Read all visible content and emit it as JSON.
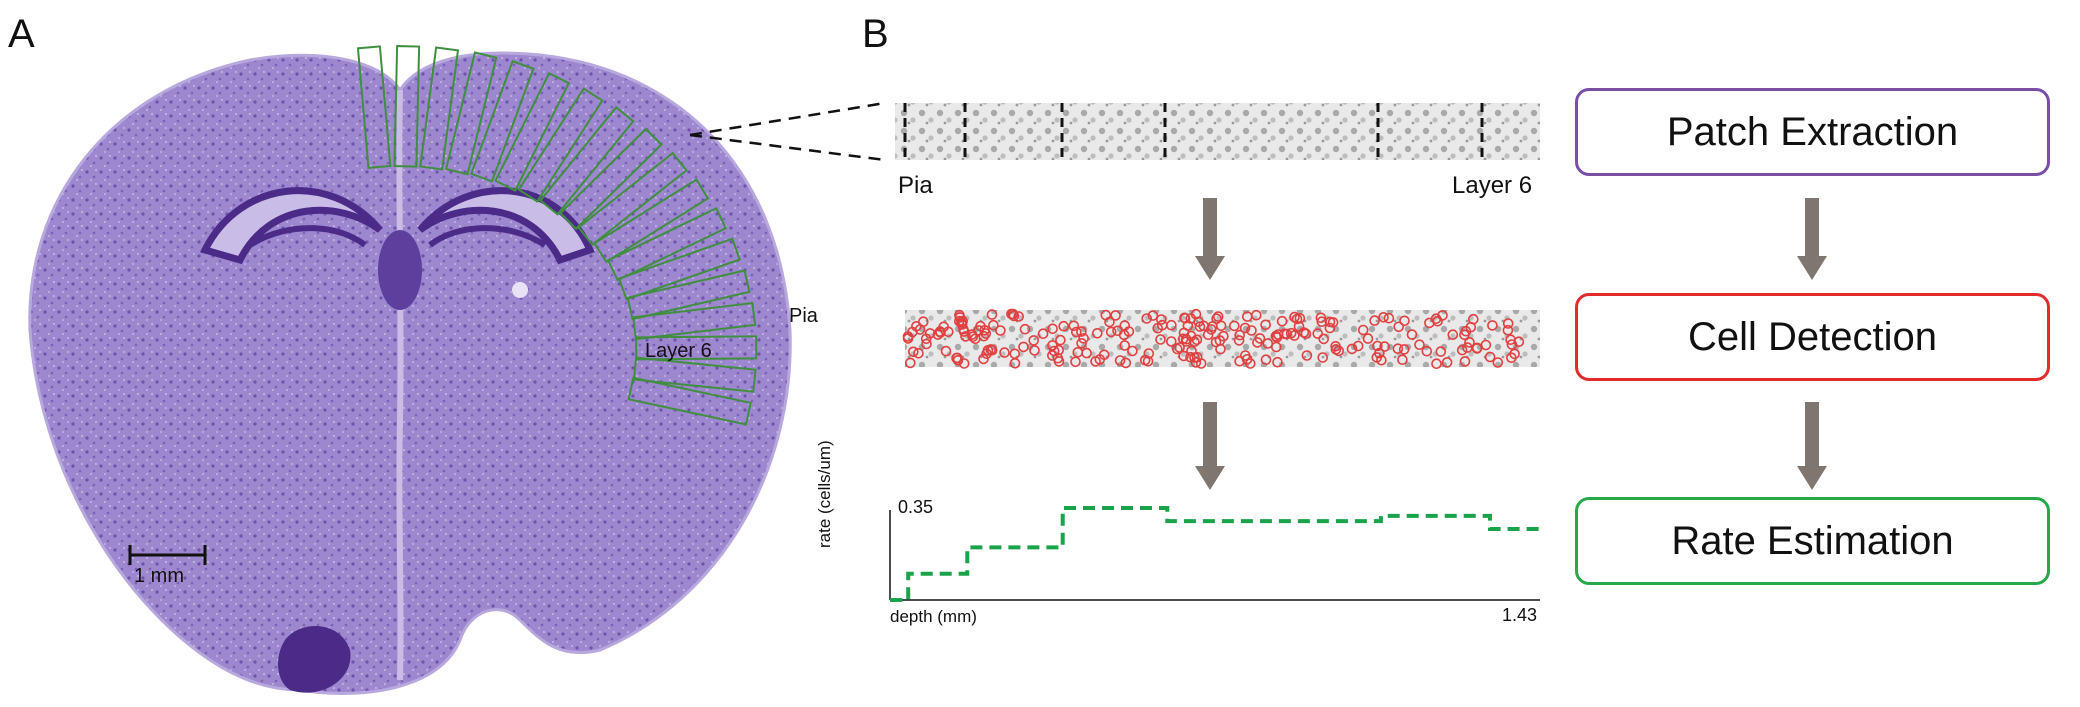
{
  "panels": {
    "a": "A",
    "b": "B"
  },
  "panel_a": {
    "scale_bar_label": "1 mm",
    "label_pia": "Pia",
    "label_layer6": "Layer 6"
  },
  "strip": {
    "label_left": "Pia",
    "label_right": "Layer 6"
  },
  "flow": [
    {
      "label": "Patch Extraction",
      "color": "#7b4ea6"
    },
    {
      "label": "Cell Detection",
      "color": "#e32b2b"
    },
    {
      "label": "Rate Estimation",
      "color": "#27a84a"
    }
  ],
  "colors": {
    "tissue": "#8a6fc0",
    "tissue_dark": "#4b2a88",
    "arrow": "#7f776f",
    "cell_circle": "#e04040",
    "rate_line": "#1aa34a",
    "patch_outline": "#3f8f3f"
  },
  "chart_data": {
    "type": "line",
    "title": "",
    "xlabel": "depth (mm)",
    "ylabel": "rate (cells/um)",
    "xlim": [
      0,
      1.43
    ],
    "ylim": [
      0,
      0.35
    ],
    "x_tick_labels": [
      "1.43"
    ],
    "y_tick_labels": [
      "0.35"
    ],
    "series": [
      {
        "style": "dashed step",
        "x": [
          0,
          0.04,
          0.04,
          0.17,
          0.17,
          0.38,
          0.38,
          0.61,
          0.61,
          1.08,
          1.08,
          1.32,
          1.32,
          1.43
        ],
        "y": [
          0.0,
          0.0,
          0.1,
          0.1,
          0.2,
          0.2,
          0.35,
          0.35,
          0.3,
          0.3,
          0.32,
          0.32,
          0.27,
          0.27
        ]
      }
    ]
  }
}
